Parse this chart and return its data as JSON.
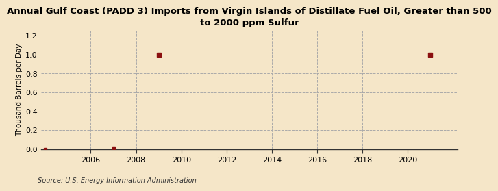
{
  "title": "Annual Gulf Coast (PADD 3) Imports from Virgin Islands of Distillate Fuel Oil, Greater than 500\nto 2000 ppm Sulfur",
  "ylabel": "Thousand Barrels per Day",
  "source": "Source: U.S. Energy Information Administration",
  "background_color": "#f5e6c8",
  "plot_bg_color": "#f5e6c8",
  "x_data": [
    2004,
    2007,
    2009,
    2021
  ],
  "y_data": [
    0.0,
    0.01,
    1.0,
    1.0
  ],
  "xlim": [
    2003.8,
    2022.2
  ],
  "ylim": [
    0,
    1.25
  ],
  "yticks": [
    0.0,
    0.2,
    0.4,
    0.6,
    0.8,
    1.0,
    1.2
  ],
  "xticks": [
    2006,
    2008,
    2010,
    2012,
    2014,
    2016,
    2018,
    2020
  ],
  "marker_color": "#8b1010",
  "grid_color": "#aaaaaa",
  "grid_style": "--",
  "title_fontsize": 9.5,
  "label_fontsize": 7.5,
  "tick_fontsize": 8,
  "source_fontsize": 7
}
